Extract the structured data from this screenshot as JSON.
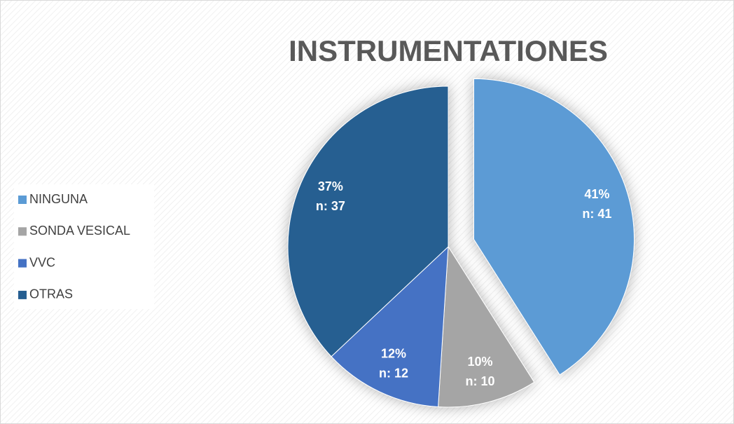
{
  "chart_data": {
    "type": "pie",
    "title": "INSTRUMENTATIONES",
    "categories": [
      "NINGUNA",
      "SONDA VESICAL",
      "VVC",
      "OTRAS"
    ],
    "values": [
      41,
      10,
      12,
      37
    ],
    "value_labels": [
      [
        "41%",
        "n: 41"
      ],
      [
        "10%",
        "n: 10"
      ],
      [
        "12%",
        "n: 12"
      ],
      [
        "37%",
        "n: 37"
      ]
    ],
    "colors": [
      "#5b9bd5",
      "#a5a5a5",
      "#4472c4",
      "#255e91"
    ],
    "legend": "left"
  }
}
